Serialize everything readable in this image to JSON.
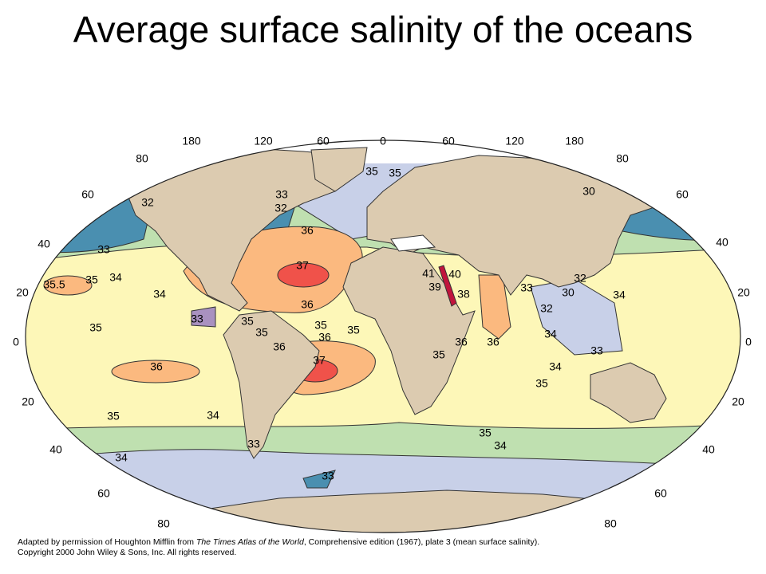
{
  "title": "Average surface salinity of the oceans",
  "longitude_labels": [
    "180",
    "120",
    "60",
    "0",
    "60",
    "120",
    "180"
  ],
  "latitude_labels_left": [
    "80",
    "60",
    "40",
    "20",
    "0",
    "20",
    "40",
    "60",
    "80"
  ],
  "latitude_labels_right": [
    "80",
    "60",
    "40",
    "20",
    "0",
    "20",
    "40",
    "60",
    "80"
  ],
  "salinity_labels": [
    "35",
    "35",
    "32",
    "33",
    "32",
    "36",
    "33",
    "37",
    "35.5",
    "35",
    "34",
    "34",
    "36",
    "33",
    "35",
    "35",
    "35",
    "35",
    "36",
    "36",
    "37",
    "36",
    "35",
    "35",
    "34",
    "33",
    "35",
    "34",
    "34",
    "33",
    "30",
    "41",
    "40",
    "39",
    "38",
    "33",
    "32",
    "30",
    "34",
    "32",
    "34",
    "33",
    "34",
    "35",
    "35",
    "36",
    "36"
  ],
  "caption": {
    "line1": [
      "Adapted by permission of Houghton Mifflin from ",
      "The Times Atlas of the World",
      ", Comprehensive edition (1967), plate 3 (mean surface salinity)."
    ],
    "line2": "Copyright 2000 John Wiley & Sons, Inc. All rights reserved."
  }
}
